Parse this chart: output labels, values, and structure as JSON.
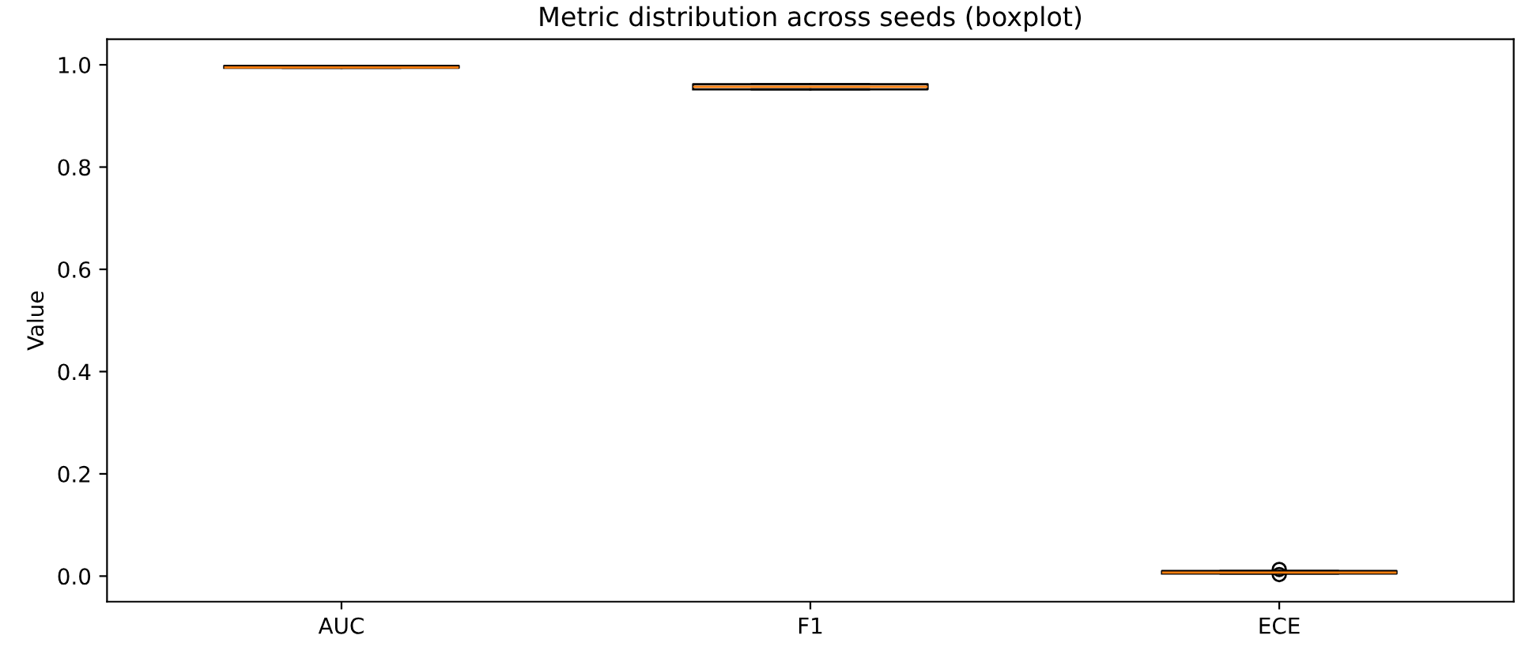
{
  "chart_data": {
    "type": "box",
    "title": "Metric distribution across seeds (boxplot)",
    "ylabel": "Value",
    "categories": [
      "AUC",
      "F1",
      "ECE"
    ],
    "boxes": [
      {
        "low": 0.994,
        "q1": 0.994,
        "median": 0.995,
        "q3": 0.998,
        "high": 0.998
      },
      {
        "low": 0.952,
        "q1": 0.952,
        "median": 0.957,
        "q3": 0.962,
        "high": 0.962
      },
      {
        "low": 0.005,
        "q1": 0.005,
        "median": 0.007,
        "q3": 0.01,
        "high": 0.01,
        "outliers": [
          0.003,
          0.013
        ]
      }
    ],
    "ylim": [
      -0.05,
      1.05
    ],
    "yticks": [
      {
        "value": 0,
        "label": "0.0"
      },
      0.2,
      0.4,
      0.6,
      0.8,
      {
        "value": 1,
        "label": "1.0"
      }
    ],
    "grid": false
  }
}
